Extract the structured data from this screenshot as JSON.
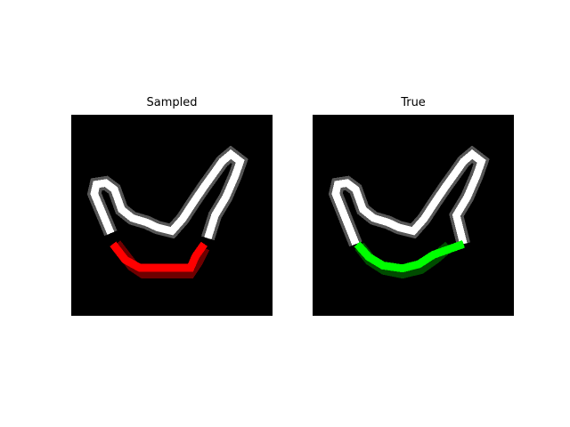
{
  "figure": {
    "panels": [
      {
        "title": "Sampled",
        "highlight_color": "#ff0000"
      },
      {
        "title": "True",
        "highlight_color": "#00ff00"
      }
    ]
  },
  "colors": {
    "stroke": "#ffffff",
    "canvas": "#000000"
  }
}
